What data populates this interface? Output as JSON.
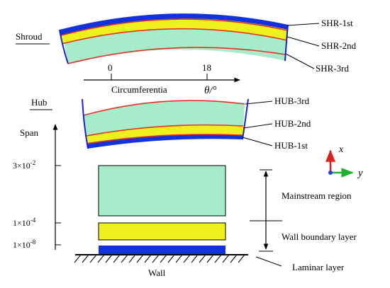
{
  "shroud": {
    "title": "Shroud",
    "layers": [
      "SHR-1st",
      "SHR-2nd",
      "SHR-3rd"
    ]
  },
  "axis": {
    "tick_0": "0",
    "tick_18": "18",
    "label": "Circumferentia",
    "symbol": "θ/°"
  },
  "hub": {
    "title": "Hub",
    "layers": [
      "HUB-3rd",
      "HUB-2nd",
      "HUB-1st"
    ]
  },
  "span": {
    "label": "Span",
    "ticks": [
      "3×10",
      "-2",
      "1×10",
      "-4",
      "1×10",
      "-8"
    ]
  },
  "coord": {
    "x": "x",
    "y": "y"
  },
  "regions": {
    "mainstream": "Mainstream region",
    "boundary": "Wall boundary layer",
    "laminar": "Laminar layer",
    "wall": "Wall"
  },
  "colors": {
    "mainstream": "#a6ecc8",
    "boundary": "#eef21c",
    "laminar": "#1133dd",
    "outline": "#1a22c8",
    "red_line": "#e5322d",
    "axis_x": "#e02020",
    "axis_y": "#20b030",
    "axis_z": "#2040e0"
  }
}
